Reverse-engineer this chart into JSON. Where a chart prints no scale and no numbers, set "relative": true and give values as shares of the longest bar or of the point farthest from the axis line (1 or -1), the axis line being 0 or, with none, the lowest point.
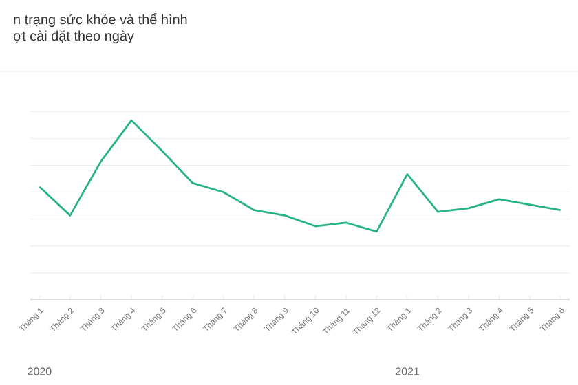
{
  "chart_data": {
    "type": "line",
    "title": "n trạng sức khỏe và thể hình",
    "subtitle": "ợt cài đặt theo ngày",
    "categories": [
      "Tháng 1",
      "Tháng 2",
      "Tháng 3",
      "Tháng 4",
      "Tháng 5",
      "Tháng 6",
      "Tháng 7",
      "Tháng 8",
      "Tháng 9",
      "Tháng 10",
      "Tháng 11",
      "Tháng 12",
      "Tháng 1",
      "Tháng 2",
      "Tháng 3",
      "Tháng 4",
      "Tháng 5",
      "Tháng 6"
    ],
    "series": [
      {
        "color": "#26b386",
        "values": [
          0.63,
          0.47,
          0.77,
          1,
          0.83,
          0.65,
          0.6,
          0.5,
          0.47,
          0.41,
          0.43,
          0.38,
          0.7,
          0.49,
          0.51,
          0.56,
          0.53,
          0.5
        ]
      }
    ],
    "relative": true,
    "grid": "y",
    "annotations": [
      "2020",
      "2021"
    ]
  }
}
